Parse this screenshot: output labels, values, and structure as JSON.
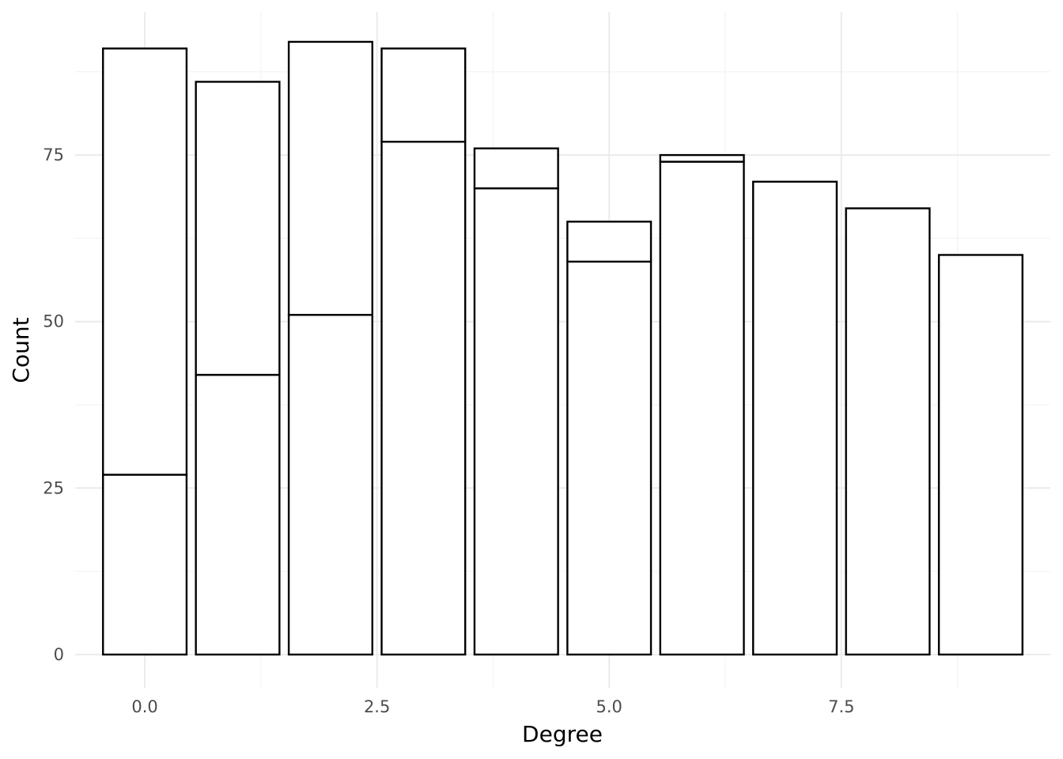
{
  "chart_data": {
    "type": "bar",
    "stacked": true,
    "title": "",
    "xlabel": "Degree",
    "ylabel": "Count",
    "x": [
      0,
      1,
      2,
      3,
      4,
      5,
      6,
      7,
      8,
      9
    ],
    "series": [
      {
        "values": [
          27,
          42,
          51,
          77,
          70,
          59,
          74,
          71,
          67,
          60
        ]
      },
      {
        "values": [
          64,
          44,
          41,
          14,
          6,
          6,
          1,
          0,
          0,
          0
        ]
      }
    ],
    "totals": [
      91,
      86,
      92,
      91,
      76,
      65,
      75,
      71,
      67,
      60
    ],
    "xlim": [
      -0.75,
      9.75
    ],
    "ylim": [
      -5,
      96.5
    ],
    "x_ticks": [
      0,
      2.5,
      5,
      7.5
    ],
    "x_tick_labels": [
      "0.0",
      "2.5",
      "5.0",
      "7.5"
    ],
    "y_ticks": [
      0,
      25,
      50,
      75
    ],
    "y_tick_labels": [
      "0",
      "25",
      "50",
      "75"
    ],
    "grid": true,
    "legend": "none",
    "fill_color": "#ffffff",
    "outline_color": "#000000",
    "grid_color": "#ebebeb"
  }
}
